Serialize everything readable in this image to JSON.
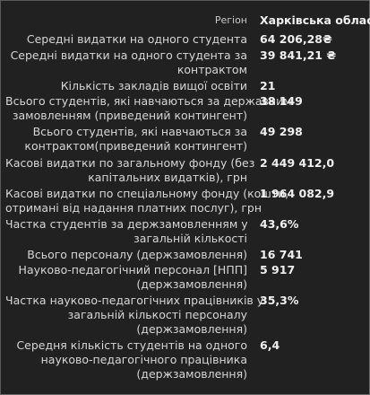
{
  "rows": [
    {
      "label": [
        "Регіон"
      ],
      "value": "Харківська область"
    },
    {
      "label": [
        "Середні видатки на одного студента"
      ],
      "value": "64 206,28₴"
    },
    {
      "label": [
        "Середні видатки на одного студента за",
        "контрактом"
      ],
      "value": "39 841,21 ₴"
    },
    {
      "label": [
        "Кількість закладів вищої освіти"
      ],
      "value": "21"
    },
    {
      "label": [
        "Всього студентів, які навчаються за державним",
        "замовленням (приведений контингент)"
      ],
      "value": "38 149"
    },
    {
      "label": [
        "Всього студентів, які навчаються за",
        "контрактом(приведений контингент)"
      ],
      "value": "49 298"
    },
    {
      "label": [
        "Касові видатки по загальному фонду (без",
        "капітальних видатків), грн"
      ],
      "value": "2 449 412,0"
    },
    {
      "label": [
        "Касові видатки по спеціальному фонду (кошти,",
        "отримані від надання платних послуг), грн"
      ],
      "value": "1 964 082,9"
    },
    {
      "label": [
        "Частка студентів за держзамовленням у",
        "загальній кількості"
      ],
      "value": "43,6%"
    },
    {
      "label": [
        "Всього персоналу (держзамовлення)"
      ],
      "value": "16 741"
    },
    {
      "label": [
        "Науково-педагогічний персонал [НПП]",
        "(держзамовлення)"
      ],
      "value": "5 917"
    },
    {
      "label": [
        "Частка науково-педагогічних працівників у",
        "загальній кількості персоналу",
        "(держзамовлення)"
      ],
      "value": "35,3%"
    },
    {
      "label": [
        "Середня кількість студентів на одного",
        "науково-педагогічного працівника",
        "(держзамовлення)"
      ],
      "value": "6,4"
    }
  ]
}
